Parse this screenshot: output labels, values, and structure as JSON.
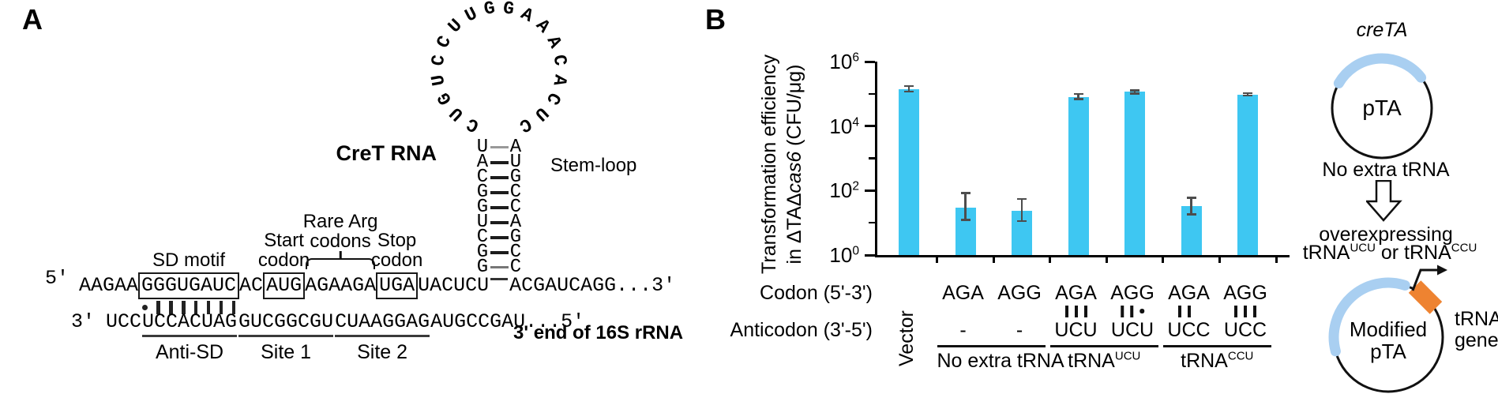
{
  "panel_a": {
    "label": "A",
    "cret_rna_label": "CreT RNA",
    "stem_loop_label": "Stem-loop",
    "loop_sequence": "CUGUCCUUGGAAACACUC",
    "stem_pairs": [
      [
        "U",
        "A"
      ],
      [
        "A",
        "U"
      ],
      [
        "C",
        "G"
      ],
      [
        "G",
        "C"
      ],
      [
        "G",
        "C"
      ],
      [
        "U",
        "A"
      ],
      [
        "C",
        "G"
      ],
      [
        "G",
        "C"
      ],
      [
        "G",
        "C"
      ]
    ],
    "five_prime_label": "5'",
    "three_prime_label": "3'",
    "top_segments": [
      {
        "text": "AAGAA",
        "style": "plain"
      },
      {
        "text": "GGGUGAUC",
        "style": "boxed",
        "annotation": "sd"
      },
      {
        "text": "AC",
        "style": "plain"
      },
      {
        "text": "AUG",
        "style": "boxed",
        "annotation": "start"
      },
      {
        "text": "AGAAGA",
        "style": "plain",
        "annotation": "rare"
      },
      {
        "text": "UGA",
        "style": "boxed",
        "annotation": "stop"
      },
      {
        "text": "UACUCU",
        "style": "plain"
      },
      {
        "text": "",
        "style": "bond"
      },
      {
        "text": "ACGAUCAGG...3'",
        "style": "plain"
      }
    ],
    "annotation_labels": {
      "sd": [
        "SD motif"
      ],
      "start": [
        "Start",
        "codon"
      ],
      "rare": [
        "Rare Arg",
        "codons"
      ],
      "stop": [
        "Stop",
        "codon"
      ]
    },
    "pairing_marks": {
      "first": "dot",
      "bars": 7
    },
    "bottom_segments": [
      {
        "text": "UCC",
        "style": "plain"
      },
      {
        "text": "UCCACUAG",
        "style": "underline",
        "region_label": "Anti-SD"
      },
      {
        "text": "GUCGGCGU",
        "style": "underline",
        "region_label": "Site 1"
      },
      {
        "text": "CUAAGGAG",
        "style": "underline",
        "region_label": "Site 2"
      },
      {
        "text": "AUGCCGAU",
        "style": "plain"
      },
      {
        "text": "...5'",
        "style": "plain"
      }
    ],
    "rrna_label": "3' end of 16S rRNA"
  },
  "panel_b": {
    "label": "B"
  },
  "chart_data": {
    "type": "bar",
    "title": "",
    "xlabel": "",
    "yscale": "log",
    "ylim": [
      1,
      1000000
    ],
    "ylabel_line1": "Transformation efficiency",
    "ylabel_line2_parts": [
      {
        "t": "in ΔTAΔ",
        "italic": false
      },
      {
        "t": "cas6",
        "italic": true
      },
      {
        "t": " (CFU/μg)",
        "italic": false
      }
    ],
    "ytick_exponents": [
      0,
      2,
      4,
      6
    ],
    "yminor_exponents": [
      1,
      3,
      5
    ],
    "ymax_exponent": 6,
    "categories": [
      "Vector",
      "AGA",
      "AGG",
      "AGA",
      "AGG",
      "AGA",
      "AGG"
    ],
    "values": [
      140000,
      30,
      24,
      80000,
      115000,
      33,
      95000
    ],
    "err_low": [
      115000,
      12,
      11,
      68000,
      100000,
      18,
      88000
    ],
    "err_high": [
      175000,
      85,
      55,
      100000,
      130000,
      60,
      105000
    ],
    "pairing": [
      "",
      "",
      "",
      "|||",
      "||.",
      "|| ",
      "|||"
    ],
    "anticodons": [
      "",
      "-",
      "-",
      "UCU",
      "UCU",
      "UCC",
      "UCC"
    ],
    "row_labels": {
      "codon": "Codon (5'-3')",
      "anticodon": "Anticodon (3'-5')"
    },
    "groups": [
      {
        "start": 1,
        "end": 2,
        "base": "No extra tRNA",
        "sup": ""
      },
      {
        "start": 3,
        "end": 4,
        "base": "tRNA",
        "sup": "UCU"
      },
      {
        "start": 5,
        "end": 6,
        "base": "tRNA",
        "sup": "CCU"
      }
    ],
    "bar_color": "#3EC7F2",
    "error_color": "#4d4d4d",
    "legend": "none",
    "grid": "off"
  },
  "plasmids": {
    "top": {
      "gene_label": "creTA",
      "name": "pTA",
      "caption": "No extra tRNA"
    },
    "transition_line1": "overexpressing",
    "transition_parts": [
      {
        "t": "tRNA",
        "sup": false
      },
      {
        "t": "UCU",
        "sup": true
      },
      {
        "t": " or tRNA",
        "sup": false
      },
      {
        "t": "CCU",
        "sup": true
      }
    ],
    "bottom": {
      "name_line1": "Modified",
      "name_line2": "pTA",
      "gene_line1": "tRNA",
      "gene_line2": "gene"
    },
    "colors": {
      "arc_blue": "#A9CFF1",
      "gene_orange": "#EE8331",
      "outline": "#111111"
    }
  }
}
